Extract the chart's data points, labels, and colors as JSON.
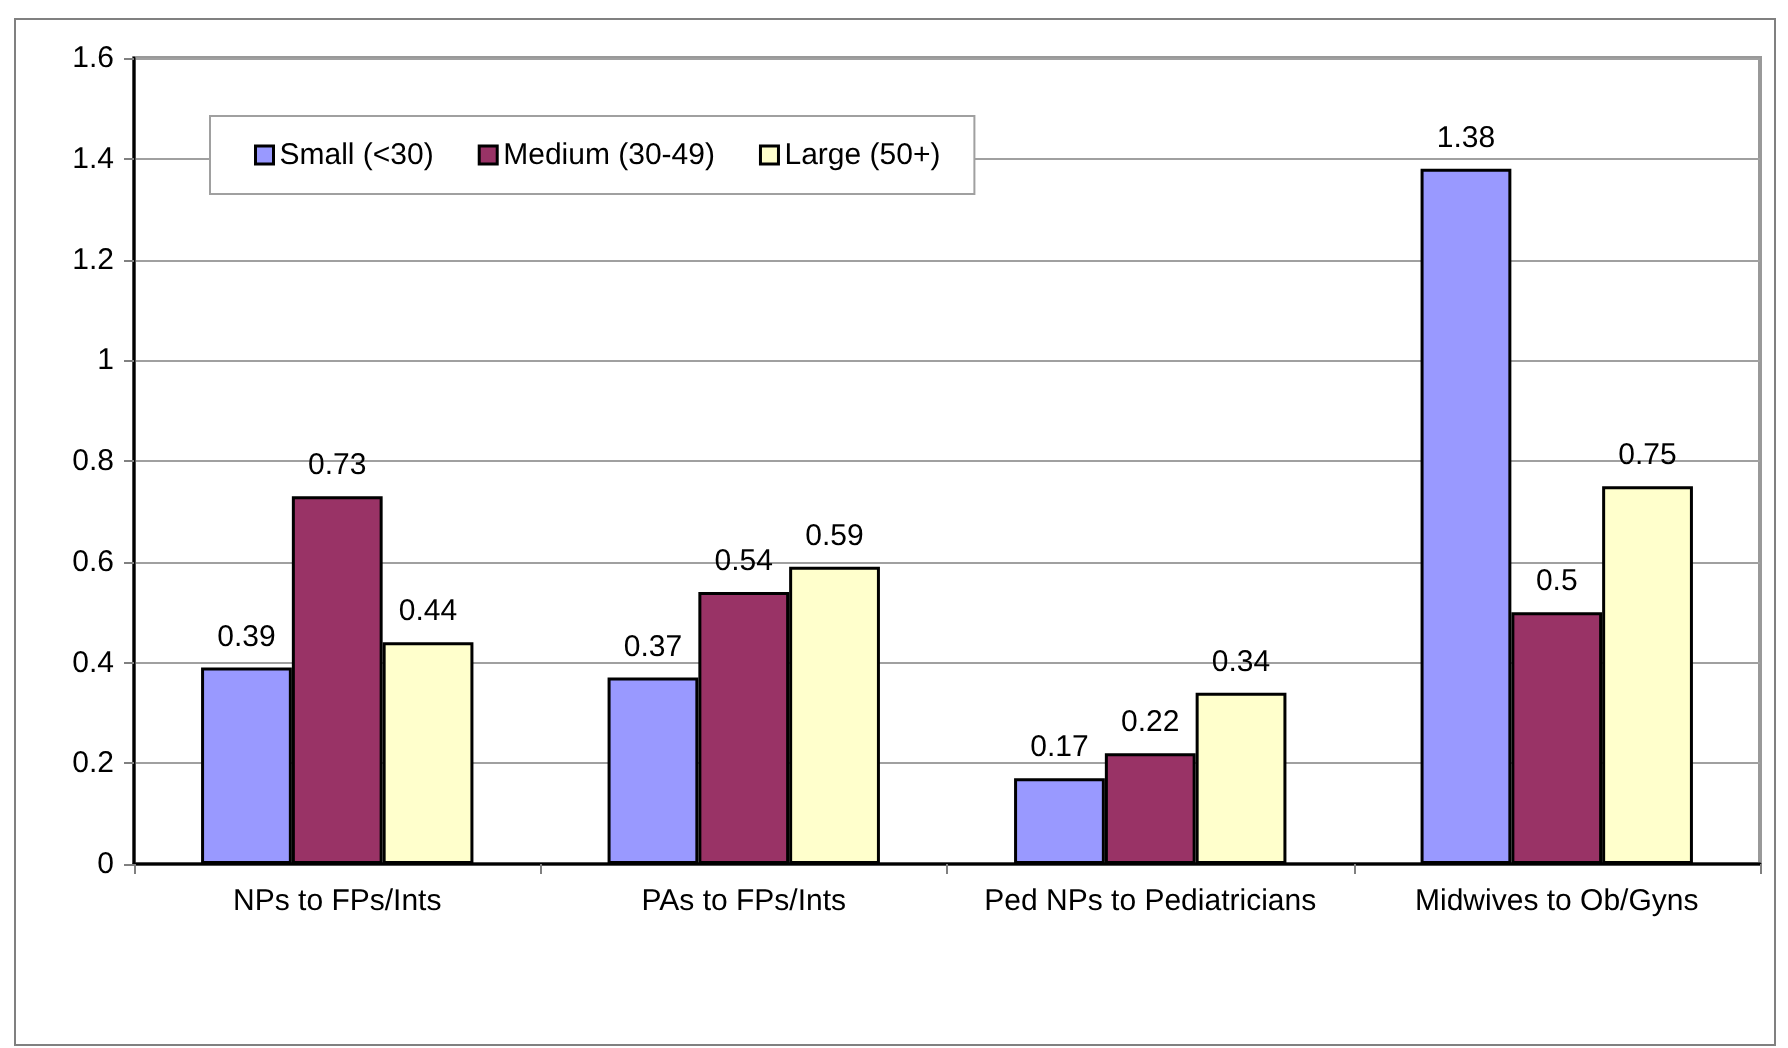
{
  "chart_data": {
    "type": "bar",
    "categories": [
      "NPs to FPs/Ints",
      "PAs to FPs/Ints",
      "Ped NPs to Pediatricians",
      "Midwives to Ob/Gyns"
    ],
    "series": [
      {
        "name": "Small (<30)",
        "color": "#9999ff",
        "values": [
          0.39,
          0.37,
          0.17,
          1.38
        ]
      },
      {
        "name": "Medium (30-49)",
        "color": "#993366",
        "values": [
          0.73,
          0.54,
          0.22,
          0.5
        ]
      },
      {
        "name": "Large (50+)",
        "color": "#ffffcc",
        "values": [
          0.44,
          0.59,
          0.34,
          0.75
        ]
      }
    ],
    "ylim": [
      0,
      1.6
    ],
    "yticks": [
      0,
      0.2,
      0.4,
      0.6,
      0.8,
      1,
      1.2,
      1.4,
      1.6
    ],
    "grid": "y",
    "legend": "top left",
    "data_labels": true
  }
}
